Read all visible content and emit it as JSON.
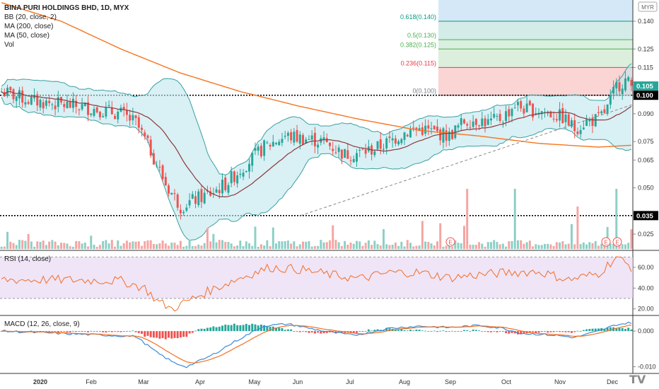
{
  "legend": {
    "main": [
      "BINA PURI HOLDINGS BHD, 1D, MYX",
      "BB (20, close, 2)",
      "MA (200, close)",
      "MA (50, close)",
      "Vol"
    ],
    "rsi": "RSI (14, close)",
    "macd": "MACD (12, 26, close, 9)"
  },
  "currency_badge": "MYR",
  "price_badges": {
    "last": "0.105",
    "level": "0.100",
    "support": "0.035"
  },
  "colors": {
    "up": "#26a69a",
    "down": "#ef5350",
    "bb_band": "#2196f3",
    "bb_fill": "#bfe6ef",
    "ma200": "#f7741e",
    "ma20": "#8b3a3a",
    "trend": "#888888",
    "rsi_bg": "#e9d8f4",
    "rsi_line": "#f06f26",
    "macd": "#3b8ad9",
    "signal": "#f27023"
  },
  "fib_levels": [
    {
      "label": "0(0.100)",
      "value": 0.1,
      "color": "#787b86"
    },
    {
      "label": "0.236(0.115)",
      "value": 0.115,
      "color": "#f23645"
    },
    {
      "label": "0.382(0.125)",
      "value": 0.125,
      "color": "#4caf50"
    },
    {
      "label": "0.5(0.130)",
      "value": 0.13,
      "color": "#4caf50"
    },
    {
      "label": "0.618(0.140)",
      "value": 0.14,
      "color": "#089981"
    }
  ],
  "chart_data": [
    {
      "type": "candlestick",
      "title": "BINA PURI HOLDINGS BHD, 1D, MYX",
      "price_axis_ticks": [
        "0.140",
        "0.125",
        "0.115",
        "0.105",
        "0.100",
        "0.090",
        "0.075",
        "0.065",
        "0.050",
        "0.035",
        "0.025"
      ],
      "price_tick_values": [
        0.14,
        0.125,
        0.115,
        0.1,
        0.09,
        0.075,
        0.065,
        0.05,
        0.025
      ],
      "x_axis_labels": [
        "2020",
        "Feb",
        "Mar",
        "Apr",
        "May",
        "Jun",
        "Jul",
        "Aug",
        "Sep",
        "Oct",
        "Nov",
        "Dec"
      ],
      "ylim": [
        0.018,
        0.15
      ],
      "closes_keypoints": [
        [
          0,
          0.102
        ],
        [
          10,
          0.097
        ],
        [
          20,
          0.095
        ],
        [
          30,
          0.093
        ],
        [
          40,
          0.09
        ],
        [
          45,
          0.085
        ],
        [
          50,
          0.07
        ],
        [
          55,
          0.052
        ],
        [
          60,
          0.04
        ],
        [
          64,
          0.043
        ],
        [
          70,
          0.047
        ],
        [
          75,
          0.052
        ],
        [
          82,
          0.063
        ],
        [
          88,
          0.072
        ],
        [
          95,
          0.078
        ],
        [
          100,
          0.077
        ],
        [
          108,
          0.075
        ],
        [
          115,
          0.068
        ],
        [
          120,
          0.069
        ],
        [
          125,
          0.071
        ],
        [
          130,
          0.075
        ],
        [
          135,
          0.08
        ],
        [
          140,
          0.082
        ],
        [
          145,
          0.08
        ],
        [
          150,
          0.078
        ],
        [
          155,
          0.086
        ],
        [
          160,
          0.087
        ],
        [
          163,
          0.085
        ],
        [
          168,
          0.088
        ],
        [
          172,
          0.095
        ],
        [
          176,
          0.092
        ],
        [
          180,
          0.092
        ],
        [
          184,
          0.09
        ],
        [
          188,
          0.088
        ],
        [
          192,
          0.082
        ],
        [
          196,
          0.086
        ],
        [
          200,
          0.087
        ],
        [
          203,
          0.093
        ],
        [
          206,
          0.105
        ],
        [
          209,
          0.108
        ],
        [
          211,
          0.105
        ]
      ],
      "ma200_keypoints": [
        [
          0,
          0.15
        ],
        [
          20,
          0.14
        ],
        [
          40,
          0.125
        ],
        [
          60,
          0.112
        ],
        [
          80,
          0.102
        ],
        [
          100,
          0.094
        ],
        [
          120,
          0.087
        ],
        [
          140,
          0.081
        ],
        [
          160,
          0.078
        ],
        [
          180,
          0.074
        ],
        [
          200,
          0.072
        ],
        [
          211,
          0.073
        ]
      ],
      "earnings_markers": [
        {
          "label": "E"
        },
        {
          "label": "E"
        },
        {
          "label": "E"
        }
      ]
    },
    {
      "type": "line",
      "title": "RSI (14, close)",
      "y_ticks": [
        "60.00",
        "40.00",
        "20.00"
      ],
      "y_tick_values": [
        60,
        40,
        20
      ],
      "bands": [
        30,
        70
      ],
      "ylim": [
        15,
        75
      ],
      "keypoints": [
        [
          0,
          48
        ],
        [
          20,
          48
        ],
        [
          40,
          47
        ],
        [
          48,
          40
        ],
        [
          52,
          28
        ],
        [
          57,
          20
        ],
        [
          62,
          27
        ],
        [
          70,
          38
        ],
        [
          80,
          50
        ],
        [
          90,
          60
        ],
        [
          100,
          58
        ],
        [
          110,
          53
        ],
        [
          120,
          49
        ],
        [
          130,
          55
        ],
        [
          140,
          55
        ],
        [
          150,
          50
        ],
        [
          160,
          53
        ],
        [
          170,
          55
        ],
        [
          180,
          56
        ],
        [
          190,
          48
        ],
        [
          200,
          54
        ],
        [
          206,
          70
        ],
        [
          211,
          60
        ]
      ]
    },
    {
      "type": "line",
      "title": "MACD (12, 26, close, 9)",
      "y_ticks": [
        "0.000",
        "-0.010"
      ],
      "y_tick_values": [
        0.0,
        -0.01
      ],
      "ylim": [
        -0.0115,
        0.004
      ],
      "macd_keypoints": [
        [
          0,
          0.0
        ],
        [
          30,
          -0.001
        ],
        [
          45,
          -0.0015
        ],
        [
          52,
          -0.006
        ],
        [
          58,
          -0.009
        ],
        [
          62,
          -0.01
        ],
        [
          70,
          -0.007
        ],
        [
          78,
          -0.003
        ],
        [
          88,
          0.0015
        ],
        [
          96,
          0.002
        ],
        [
          108,
          0.0
        ],
        [
          118,
          -0.0012
        ],
        [
          130,
          0.0008
        ],
        [
          140,
          0.0014
        ],
        [
          150,
          0.001
        ],
        [
          160,
          0.0016
        ],
        [
          168,
          0.0008
        ],
        [
          174,
          -0.0006
        ],
        [
          186,
          -0.0012
        ],
        [
          192,
          -0.0018
        ],
        [
          200,
          0.0
        ],
        [
          206,
          0.0018
        ],
        [
          211,
          0.0024
        ]
      ]
    }
  ]
}
